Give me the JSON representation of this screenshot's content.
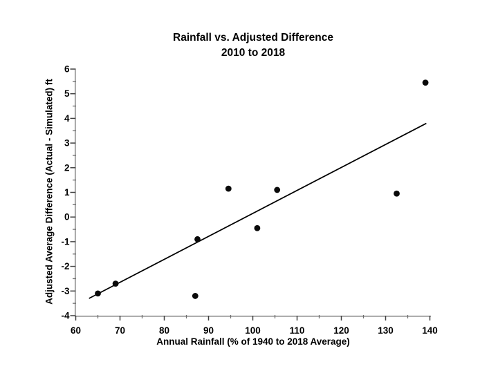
{
  "chart_data": {
    "type": "scatter",
    "title": "Rainfall vs. Adjusted Difference",
    "subtitle": "2010 to 2018",
    "xlabel": "Annual Rainfall (% of 1940 to 2018 Average)",
    "ylabel": "Adjusted Average Difference (Actual - Simulated) ft",
    "xlim": [
      60,
      140
    ],
    "ylim": [
      -4,
      6
    ],
    "x_major_ticks": [
      60,
      70,
      80,
      90,
      100,
      110,
      120,
      130,
      140
    ],
    "x_minor_step": 5,
    "y_major_ticks": [
      -4,
      -3,
      -2,
      -1,
      0,
      1,
      2,
      3,
      4,
      5,
      6
    ],
    "y_minor_step": 0.5,
    "grid": false,
    "legend": false,
    "points": [
      [
        65,
        -3.1
      ],
      [
        69,
        -2.7
      ],
      [
        87,
        -3.2
      ],
      [
        87.5,
        -0.9
      ],
      [
        94.5,
        1.15
      ],
      [
        101,
        -0.45
      ],
      [
        105.5,
        1.1
      ],
      [
        132.5,
        0.95
      ],
      [
        139,
        5.45
      ]
    ],
    "trend_line": {
      "x1": 63,
      "y1": -3.3,
      "x2": 139.2,
      "y2": 3.8
    },
    "colors": {
      "axis": "#808080",
      "major_tick": "#3f3f3f",
      "minor_tick": "#6e6e6e",
      "text": "#000000",
      "point": "#0a0a0a",
      "trend": "#000000"
    }
  }
}
